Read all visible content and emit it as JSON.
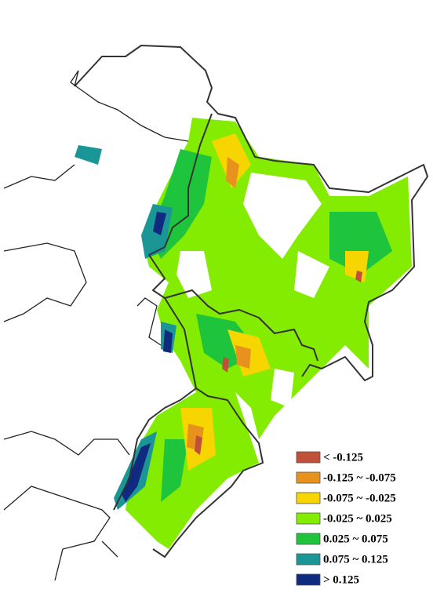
{
  "legend": {
    "items": [
      {
        "label": "< -0.125",
        "color": "#c0503a"
      },
      {
        "label": "-0.125 ~ -0.075",
        "color": "#e8921e"
      },
      {
        "label": "-0.075 ~ -0.025",
        "color": "#f7d500"
      },
      {
        "label": "-0.025 ~ 0.025",
        "color": "#84ec00"
      },
      {
        "label": "0.025 ~ 0.075",
        "color": "#1ec43c"
      },
      {
        "label": "0.075 ~ 0.125",
        "color": "#1a9696"
      },
      {
        "label": "> 0.125",
        "color": "#102a80"
      }
    ]
  }
}
